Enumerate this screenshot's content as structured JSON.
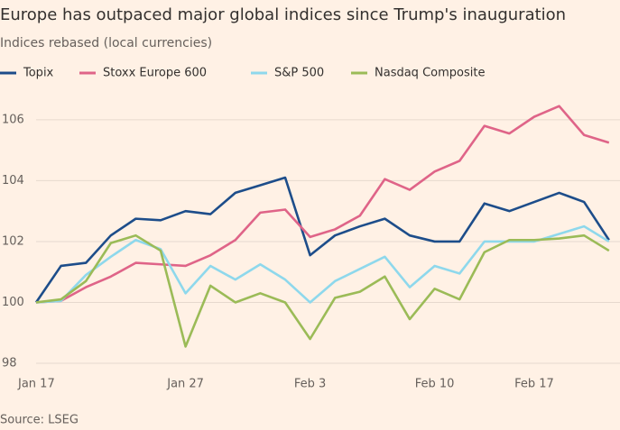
{
  "chart_data": {
    "type": "line",
    "title": "Europe has outpaced major global indices since Trump's inauguration",
    "subtitle": "Indices rebased (local currencies)",
    "source": "Source: LSEG",
    "categories": [
      "Jan 17",
      null,
      null,
      null,
      null,
      null,
      "Jan 27",
      null,
      null,
      null,
      null,
      "Feb 3",
      null,
      null,
      null,
      null,
      "Feb 10",
      null,
      null,
      null,
      "Feb 17",
      null,
      null,
      null
    ],
    "series": [
      {
        "name": "Topix",
        "color": "#1d4d8a",
        "values": [
          100,
          101.2,
          101.3,
          102.2,
          102.75,
          102.7,
          103.0,
          102.9,
          103.6,
          103.85,
          104.1,
          101.55,
          102.2,
          102.5,
          102.75,
          102.2,
          102.0,
          102.0,
          103.25,
          103.0,
          103.3,
          103.6,
          103.3,
          102.05
        ]
      },
      {
        "name": "Stoxx Europe 600",
        "color": "#df6488",
        "values": [
          100,
          100.05,
          100.5,
          100.85,
          101.3,
          101.25,
          101.2,
          101.55,
          102.05,
          102.95,
          103.05,
          102.15,
          102.4,
          102.85,
          104.05,
          103.7,
          104.3,
          104.65,
          105.8,
          105.55,
          106.1,
          106.45,
          105.5,
          105.25
        ]
      },
      {
        "name": "S&P 500",
        "color": "#8ed8ec",
        "values": [
          100,
          100.05,
          100.9,
          101.5,
          102.05,
          101.75,
          100.3,
          101.2,
          100.75,
          101.25,
          100.75,
          100.0,
          100.7,
          101.1,
          101.5,
          100.5,
          101.2,
          100.95,
          102.0,
          102.0,
          102.0,
          102.25,
          102.5,
          102.0
        ]
      },
      {
        "name": "Nasdaq Composite",
        "color": "#9bbb57",
        "values": [
          100,
          100.1,
          100.7,
          101.95,
          102.2,
          101.7,
          98.55,
          100.55,
          100.0,
          100.3,
          100.0,
          98.8,
          100.15,
          100.35,
          100.85,
          99.45,
          100.45,
          100.1,
          101.65,
          102.05,
          102.05,
          102.1,
          102.2,
          101.7
        ]
      }
    ],
    "ylim": [
      98,
      106.5
    ],
    "yticks": [
      98,
      100,
      102,
      104,
      106
    ],
    "grid": true
  }
}
